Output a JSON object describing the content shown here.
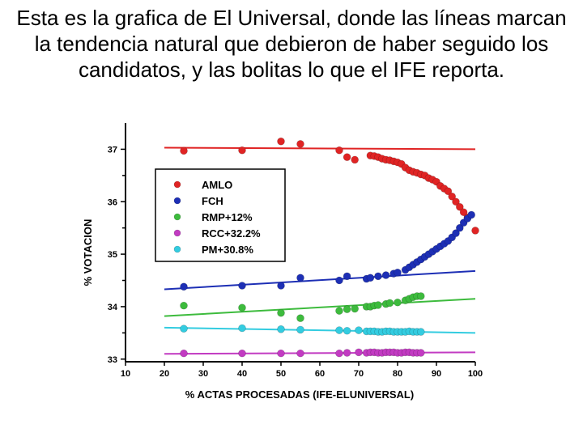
{
  "caption": "Esta es la grafica de El Universal, donde las líneas marcan la tendencia natural que debieron de haber seguido los candidatos, y las bolitas lo que el IFE reporta.",
  "chart_data": {
    "type": "scatter",
    "title": "",
    "xlabel": "% ACTAS PROCESADAS (IFE-ELUNIVERSAL)",
    "ylabel": "% VOTACION",
    "xlim": [
      10,
      100
    ],
    "ylim": [
      32.95,
      37.5
    ],
    "xticks": [
      10,
      20,
      30,
      40,
      50,
      60,
      70,
      80,
      90,
      100
    ],
    "yticks": [
      33,
      34,
      35,
      36,
      37
    ],
    "legend_position": "upper-left",
    "grid": false,
    "series": [
      {
        "name": "AMLO",
        "color": "#e02424",
        "trend": [
          [
            20,
            37.03
          ],
          [
            100,
            37.0
          ]
        ],
        "points": [
          [
            25,
            36.97
          ],
          [
            40,
            36.98
          ],
          [
            50,
            37.15
          ],
          [
            55,
            37.1
          ],
          [
            65,
            36.98
          ],
          [
            67,
            36.85
          ],
          [
            69,
            36.8
          ],
          [
            73,
            36.88
          ],
          [
            74,
            36.87
          ],
          [
            75,
            36.85
          ],
          [
            76,
            36.82
          ],
          [
            77,
            36.8
          ],
          [
            78,
            36.79
          ],
          [
            79,
            36.77
          ],
          [
            80,
            36.75
          ],
          [
            81,
            36.72
          ],
          [
            82,
            36.65
          ],
          [
            83,
            36.6
          ],
          [
            84,
            36.57
          ],
          [
            85,
            36.55
          ],
          [
            86,
            36.52
          ],
          [
            87,
            36.5
          ],
          [
            88,
            36.45
          ],
          [
            89,
            36.42
          ],
          [
            90,
            36.38
          ],
          [
            91,
            36.3
          ],
          [
            92,
            36.25
          ],
          [
            93,
            36.2
          ],
          [
            94,
            36.1
          ],
          [
            95,
            36.0
          ],
          [
            96,
            35.9
          ],
          [
            97,
            35.8
          ],
          [
            98,
            35.7
          ],
          [
            100,
            35.45
          ]
        ]
      },
      {
        "name": "FCH",
        "color": "#1d2fb5",
        "trend": [
          [
            20,
            34.33
          ],
          [
            100,
            34.68
          ]
        ],
        "points": [
          [
            25,
            34.38
          ],
          [
            40,
            34.4
          ],
          [
            50,
            34.4
          ],
          [
            55,
            34.55
          ],
          [
            65,
            34.5
          ],
          [
            67,
            34.58
          ],
          [
            72,
            34.53
          ],
          [
            73,
            34.55
          ],
          [
            75,
            34.58
          ],
          [
            77,
            34.6
          ],
          [
            79,
            34.63
          ],
          [
            80,
            34.65
          ],
          [
            82,
            34.7
          ],
          [
            83,
            34.75
          ],
          [
            84,
            34.8
          ],
          [
            85,
            34.85
          ],
          [
            86,
            34.9
          ],
          [
            87,
            34.95
          ],
          [
            88,
            35.0
          ],
          [
            89,
            35.05
          ],
          [
            90,
            35.1
          ],
          [
            91,
            35.15
          ],
          [
            92,
            35.2
          ],
          [
            93,
            35.25
          ],
          [
            94,
            35.32
          ],
          [
            95,
            35.4
          ],
          [
            96,
            35.5
          ],
          [
            97,
            35.6
          ],
          [
            98,
            35.68
          ],
          [
            99,
            35.75
          ]
        ]
      },
      {
        "name": "RMP+12%",
        "color": "#3dbb3d",
        "trend": [
          [
            20,
            33.82
          ],
          [
            100,
            34.15
          ]
        ],
        "points": [
          [
            25,
            34.02
          ],
          [
            40,
            33.98
          ],
          [
            50,
            33.88
          ],
          [
            55,
            33.78
          ],
          [
            65,
            33.92
          ],
          [
            67,
            33.95
          ],
          [
            69,
            33.96
          ],
          [
            72,
            34.0
          ],
          [
            73,
            34.0
          ],
          [
            74,
            34.02
          ],
          [
            75,
            34.03
          ],
          [
            77,
            34.05
          ],
          [
            78,
            34.07
          ],
          [
            80,
            34.08
          ],
          [
            82,
            34.12
          ],
          [
            83,
            34.15
          ],
          [
            84,
            34.18
          ],
          [
            85,
            34.2
          ],
          [
            86,
            34.2
          ]
        ]
      },
      {
        "name": "RCC+32.2%",
        "color": "#c23bc2",
        "trend": [
          [
            20,
            33.1
          ],
          [
            100,
            33.13
          ]
        ],
        "points": [
          [
            25,
            33.11
          ],
          [
            40,
            33.11
          ],
          [
            50,
            33.11
          ],
          [
            55,
            33.11
          ],
          [
            65,
            33.11
          ],
          [
            67,
            33.12
          ],
          [
            70,
            33.13
          ],
          [
            72,
            33.12
          ],
          [
            73,
            33.13
          ],
          [
            74,
            33.13
          ],
          [
            75,
            33.12
          ],
          [
            76,
            33.12
          ],
          [
            77,
            33.13
          ],
          [
            78,
            33.13
          ],
          [
            79,
            33.13
          ],
          [
            80,
            33.12
          ],
          [
            81,
            33.12
          ],
          [
            82,
            33.13
          ],
          [
            83,
            33.13
          ],
          [
            84,
            33.12
          ],
          [
            85,
            33.12
          ],
          [
            86,
            33.12
          ]
        ]
      },
      {
        "name": "PM+30.8%",
        "color": "#33cce0",
        "trend": [
          [
            20,
            33.6
          ],
          [
            100,
            33.5
          ]
        ],
        "points": [
          [
            25,
            33.58
          ],
          [
            40,
            33.59
          ],
          [
            50,
            33.57
          ],
          [
            55,
            33.56
          ],
          [
            65,
            33.55
          ],
          [
            67,
            33.54
          ],
          [
            70,
            33.55
          ],
          [
            72,
            33.53
          ],
          [
            73,
            33.53
          ],
          [
            74,
            33.53
          ],
          [
            75,
            33.52
          ],
          [
            76,
            33.52
          ],
          [
            77,
            33.53
          ],
          [
            78,
            33.53
          ],
          [
            79,
            33.52
          ],
          [
            80,
            33.52
          ],
          [
            81,
            33.52
          ],
          [
            82,
            33.52
          ],
          [
            83,
            33.53
          ],
          [
            84,
            33.52
          ],
          [
            85,
            33.52
          ],
          [
            86,
            33.52
          ]
        ]
      }
    ]
  }
}
